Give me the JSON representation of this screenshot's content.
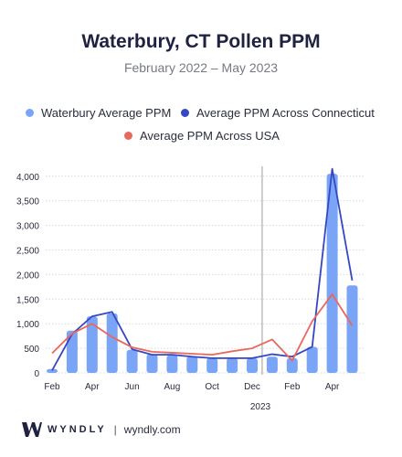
{
  "header": {
    "title": "Waterbury, CT Pollen PPM",
    "subtitle": "February 2022 – May 2023"
  },
  "legend": [
    {
      "label": "Waterbury Average PPM",
      "color": "#7aa5f6"
    },
    {
      "label": "Average PPM Across Connecticut",
      "color": "#3647c4"
    },
    {
      "label": "Average PPM Across USA",
      "color": "#e8685e"
    }
  ],
  "footer": {
    "brand": "WYNDLY",
    "separator": "|",
    "url": "wyndly.com"
  },
  "chart_data": {
    "type": "bar",
    "x": [
      "Feb 2022",
      "Mar 2022",
      "Apr 2022",
      "May 2022",
      "Jun 2022",
      "Jul 2022",
      "Aug 2022",
      "Sep 2022",
      "Oct 2022",
      "Nov 2022",
      "Dec 2022",
      "Jan 2023",
      "Feb 2023",
      "Mar 2023",
      "Apr 2023",
      "May 2023"
    ],
    "tick_labels": [
      "Feb",
      "Apr",
      "Jun",
      "Aug",
      "Oct",
      "Dec",
      "Feb",
      "Apr"
    ],
    "year_label": "2023",
    "series": [
      {
        "name": "Waterbury Average PPM",
        "type": "bar",
        "color": "#7aa5f6",
        "values": [
          80,
          860,
          1150,
          1210,
          470,
          380,
          360,
          330,
          300,
          300,
          300,
          330,
          300,
          530,
          4050,
          1780
        ]
      },
      {
        "name": "Average PPM Across Connecticut",
        "type": "line",
        "color": "#3647c4",
        "values": [
          50,
          790,
          1150,
          1240,
          480,
          370,
          370,
          330,
          300,
          300,
          300,
          380,
          330,
          530,
          4150,
          1880
        ]
      },
      {
        "name": "Average PPM Across USA",
        "type": "line",
        "color": "#e8685e",
        "values": [
          400,
          800,
          1000,
          730,
          520,
          430,
          410,
          390,
          370,
          440,
          500,
          680,
          250,
          1050,
          1600,
          960
        ]
      }
    ],
    "y_ticks": [
      0,
      500,
      1000,
      1500,
      2000,
      2500,
      3000,
      3500,
      4000
    ],
    "y_tick_labels": [
      "0",
      "500",
      "1,000",
      "1,500",
      "2,000",
      "2,500",
      "3,000",
      "3,500",
      "4,000"
    ],
    "ylim": [
      0,
      4200
    ],
    "grid": true,
    "legend_position": "top"
  }
}
